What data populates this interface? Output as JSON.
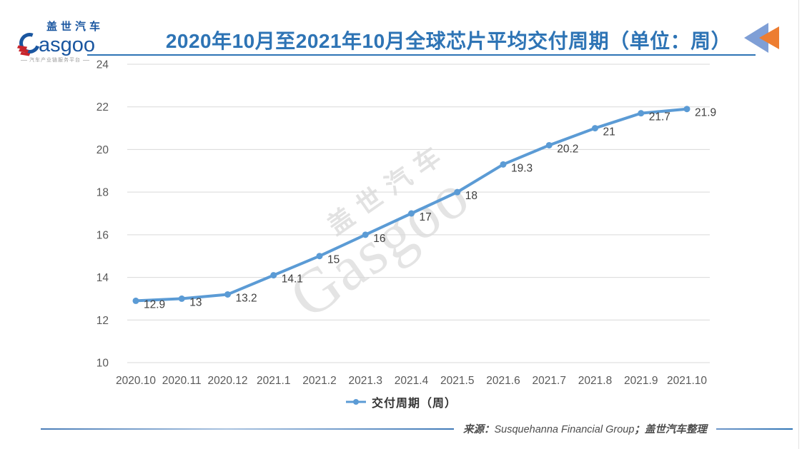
{
  "page": {
    "logo": {
      "brand_cn": "盖世汽车",
      "brand_en_tail": "asgoo",
      "tagline": "汽车产业链服务平台"
    },
    "header": {
      "title": "2020年10月至2021年10月全球芯片平均交付周期（单位：周）"
    },
    "watermark": {
      "cn": "盖世汽车",
      "en": "Gasgoo"
    },
    "source": {
      "prefix": "来源：",
      "name": "Susquehanna Financial Group",
      "suffix": "；盖世汽车整理"
    },
    "colors": {
      "accent_blue": "#2e74b5",
      "line_blue": "#5b9bd5",
      "grid_gray": "#d9d9d9",
      "axis_text": "#595959",
      "data_label": "#3f3f3f",
      "arrow_blue": "#7f9fd6",
      "arrow_orange": "#ed7d31",
      "logo_blue": "#1a56a0",
      "logo_red": "#c9252c"
    }
  },
  "chart_data": {
    "type": "line",
    "title": "2020年10月至2021年10月全球芯片平均交付周期（单位：周）",
    "categories": [
      "2020.10",
      "2020.11",
      "2020.12",
      "2021.1",
      "2021.2",
      "2021.3",
      "2021.4",
      "2021.5",
      "2021.6",
      "2021.7",
      "2021.8",
      "2021.9",
      "2021.10"
    ],
    "series": [
      {
        "name": "交付周期（周）",
        "values": [
          12.9,
          13,
          13.2,
          14.1,
          15,
          16,
          17,
          18,
          19.3,
          20.2,
          21,
          21.7,
          21.9
        ]
      }
    ],
    "xlabel": "",
    "ylabel": "",
    "ylim": [
      10,
      24
    ],
    "yticks": [
      10,
      12,
      14,
      16,
      18,
      20,
      22,
      24
    ],
    "grid": true,
    "data_labels": true,
    "legend_position": "bottom"
  }
}
